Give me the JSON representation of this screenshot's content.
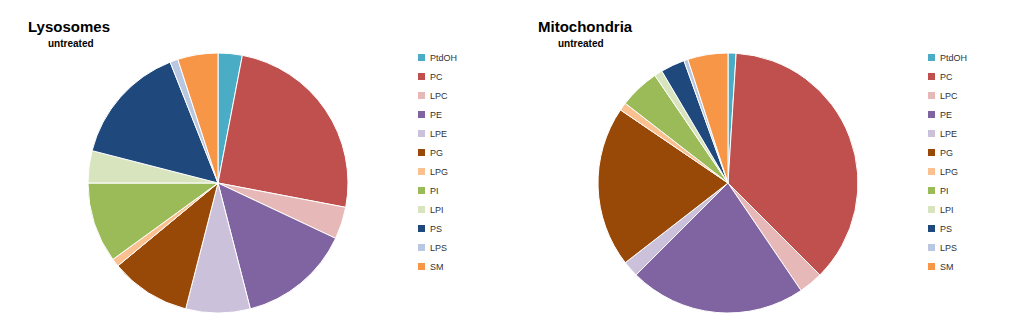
{
  "chart_data": [
    {
      "type": "pie",
      "title": "Lysosomes",
      "subtitle": "untreated",
      "categories": [
        "PtdOH",
        "PC",
        "LPC",
        "PE",
        "LPE",
        "PG",
        "LPG",
        "PI",
        "LPI",
        "PS",
        "LPS",
        "SM"
      ],
      "values": [
        3,
        25,
        4,
        14,
        8,
        10,
        1,
        10,
        4,
        15,
        1,
        5
      ],
      "colors": [
        "#4bacc6",
        "#c0504d",
        "#e6b9b8",
        "#8064a2",
        "#ccc1da",
        "#984807",
        "#fac090",
        "#9bbb59",
        "#d7e4bd",
        "#1f497d",
        "#b9c7e0",
        "#f79646"
      ],
      "legend": "right"
    },
    {
      "type": "pie",
      "title": "Mitochondria",
      "subtitle": "untreated",
      "categories": [
        "PtdOH",
        "PC",
        "LPC",
        "PE",
        "LPE",
        "PG",
        "LPG",
        "PI",
        "LPI",
        "PS",
        "LPS",
        "SM"
      ],
      "values": [
        1,
        36.5,
        3,
        22,
        2,
        20,
        1,
        5,
        1,
        3,
        0.5,
        5
      ],
      "colors": [
        "#4bacc6",
        "#c0504d",
        "#e6b9b8",
        "#8064a2",
        "#ccc1da",
        "#984807",
        "#fac090",
        "#9bbb59",
        "#d7e4bd",
        "#1f497d",
        "#b9c7e0",
        "#f79646"
      ],
      "legend": "right"
    }
  ]
}
